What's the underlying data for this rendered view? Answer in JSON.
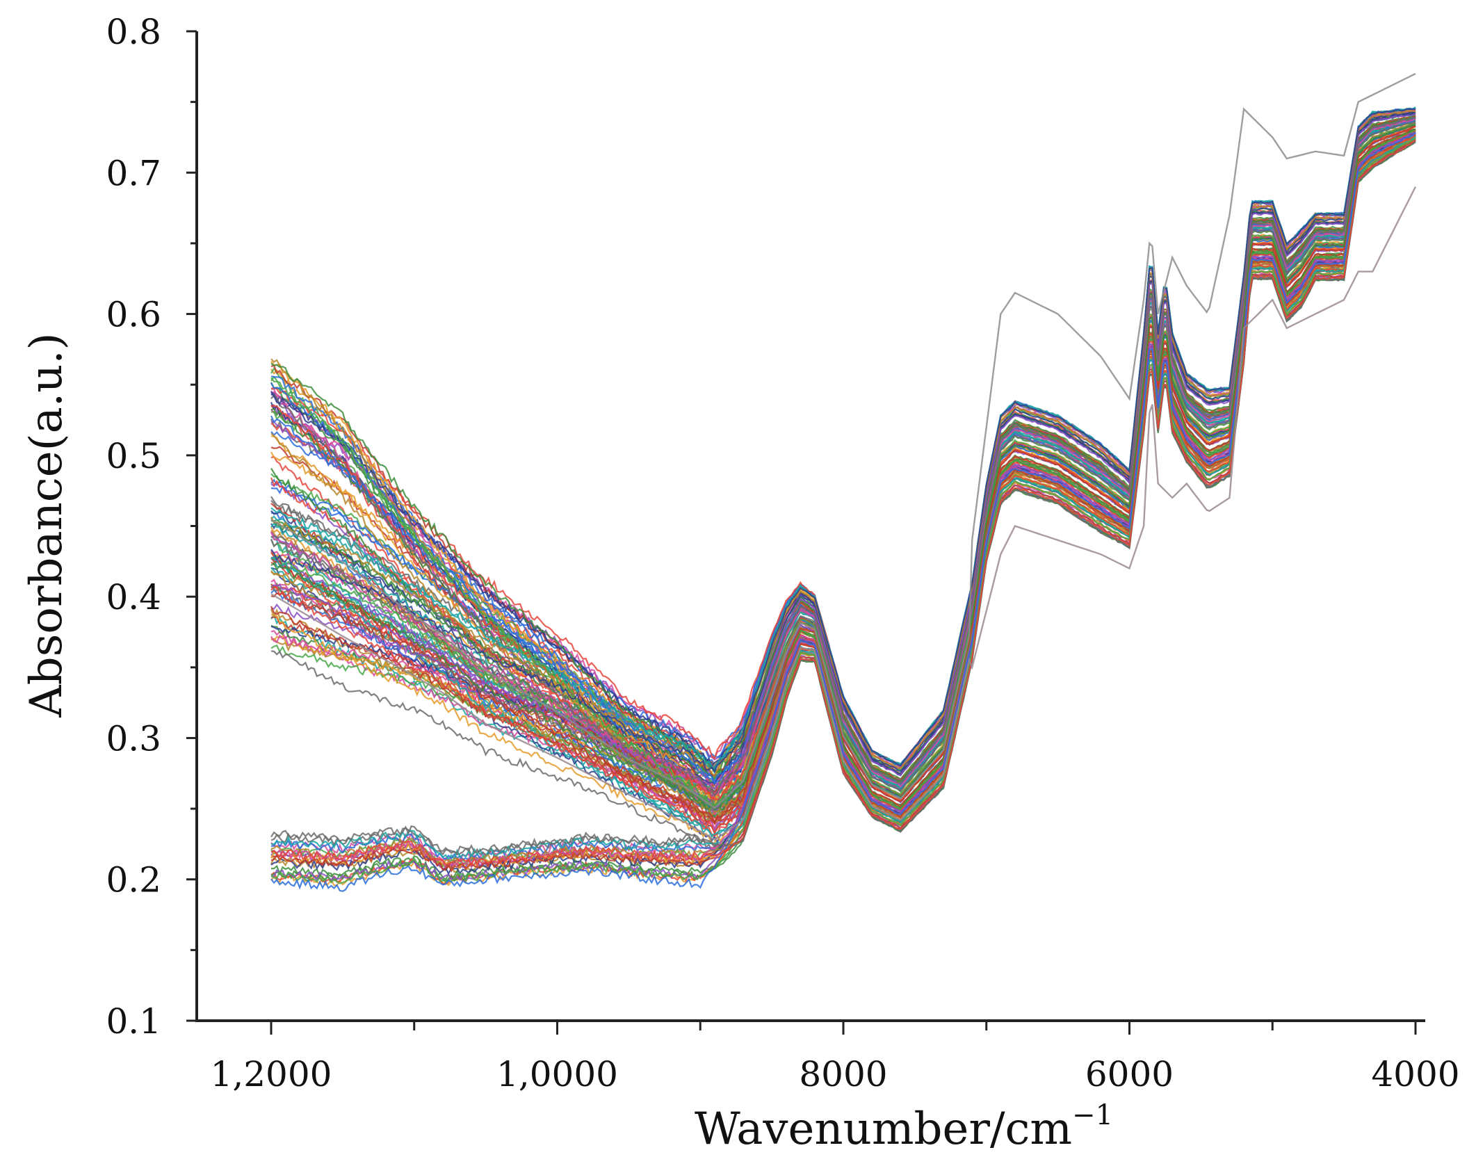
{
  "chart_data": {
    "type": "line",
    "title": "",
    "xlabel": "Wavenumber/cm",
    "xlabel_superscript": "−1",
    "ylabel": "Absorbance(a.u.)",
    "x_reversed": true,
    "xlim": [
      12000,
      4000
    ],
    "ylim": [
      0.1,
      0.8
    ],
    "x_ticks": [
      {
        "value": 12000,
        "label": "1,2000"
      },
      {
        "value": 10000,
        "label": "1,0000"
      },
      {
        "value": 8000,
        "label": "8000"
      },
      {
        "value": 6000,
        "label": "6000"
      },
      {
        "value": 4000,
        "label": "4000"
      }
    ],
    "y_ticks": [
      {
        "value": 0.8,
        "label": "0.8"
      },
      {
        "value": 0.7,
        "label": "0.7"
      },
      {
        "value": 0.6,
        "label": "0.6"
      },
      {
        "value": 0.5,
        "label": "0.5"
      },
      {
        "value": 0.4,
        "label": "0.4"
      },
      {
        "value": 0.3,
        "label": "0.3"
      },
      {
        "value": 0.2,
        "label": "0.2"
      },
      {
        "value": 0.1,
        "label": "0.1"
      }
    ],
    "grid": false,
    "legend": "none",
    "series_count_estimate": 120,
    "palette": [
      "#e6453a",
      "#3c8d3c",
      "#2a6fdb",
      "#e69a28",
      "#8a4fc7",
      "#1aa6a6",
      "#d64a9c",
      "#6b6b6b",
      "#b6862c",
      "#4aa84a",
      "#2f3f8f",
      "#c0392b"
    ],
    "envelopes": {
      "x": [
        12000,
        11500,
        11000,
        10800,
        10500,
        10000,
        9500,
        9100,
        8900,
        8700,
        8500,
        8400,
        8300,
        8200,
        8000,
        7800,
        7600,
        7300,
        7100,
        7000,
        6900,
        6800,
        6500,
        6200,
        6000,
        5900,
        5850,
        5800,
        5750,
        5700,
        5600,
        5450,
        5300,
        5200,
        5150,
        5000,
        4900,
        4800,
        4700,
        4500,
        4400,
        4300,
        4000
      ],
      "upper_group": {
        "max": [
          0.57,
          0.54,
          0.48,
          0.46,
          0.43,
          0.39,
          0.34,
          0.32,
          0.3,
          0.33,
          0.39,
          0.41,
          0.42,
          0.41,
          0.34,
          0.3,
          0.29,
          0.33,
          0.42,
          0.49,
          0.54,
          0.55,
          0.54,
          0.52,
          0.5,
          0.6,
          0.66,
          0.6,
          0.64,
          0.6,
          0.57,
          0.56,
          0.56,
          0.64,
          0.69,
          0.69,
          0.66,
          0.67,
          0.68,
          0.68,
          0.74,
          0.75,
          0.75
        ],
        "min": [
          0.36,
          0.33,
          0.31,
          0.3,
          0.28,
          0.26,
          0.24,
          0.22,
          0.21,
          0.22,
          0.28,
          0.32,
          0.35,
          0.35,
          0.27,
          0.24,
          0.23,
          0.26,
          0.35,
          0.42,
          0.46,
          0.47,
          0.46,
          0.44,
          0.43,
          0.51,
          0.56,
          0.51,
          0.55,
          0.51,
          0.49,
          0.47,
          0.48,
          0.56,
          0.62,
          0.62,
          0.59,
          0.6,
          0.62,
          0.62,
          0.69,
          0.7,
          0.72
        ]
      },
      "lower_group": {
        "max": [
          0.235,
          0.232,
          0.237,
          0.238,
          0.222,
          0.224,
          0.232,
          0.23,
          0.232
        ],
        "min": [
          0.197,
          0.193,
          0.203,
          0.207,
          0.195,
          0.2,
          0.205,
          0.198,
          0.195
        ],
        "x": [
          12000,
          11500,
          11200,
          11000,
          10800,
          10400,
          9800,
          9300,
          9000
        ]
      },
      "outlier_high": {
        "x": [
          7100,
          6900,
          6800,
          6500,
          6200,
          6000,
          5900,
          5850,
          5800,
          5700,
          5600,
          5450,
          5300,
          5200,
          5000,
          4900,
          4700,
          4500,
          4400,
          4300,
          4000
        ],
        "y": [
          0.44,
          0.6,
          0.615,
          0.6,
          0.57,
          0.54,
          0.61,
          0.66,
          0.6,
          0.64,
          0.62,
          0.6,
          0.67,
          0.745,
          0.725,
          0.71,
          0.715,
          0.712,
          0.75,
          0.755,
          0.77
        ]
      },
      "outlier_low": {
        "x": [
          7100,
          6900,
          6800,
          6500,
          6200,
          6000,
          5900,
          5850,
          5800,
          5700,
          5600,
          5450,
          5300,
          5200,
          5000,
          4900,
          4700,
          4500,
          4400,
          4300,
          4000
        ],
        "y": [
          0.35,
          0.43,
          0.45,
          0.44,
          0.43,
          0.42,
          0.45,
          0.55,
          0.48,
          0.47,
          0.48,
          0.46,
          0.47,
          0.59,
          0.61,
          0.59,
          0.6,
          0.61,
          0.63,
          0.63,
          0.69
        ]
      }
    }
  }
}
